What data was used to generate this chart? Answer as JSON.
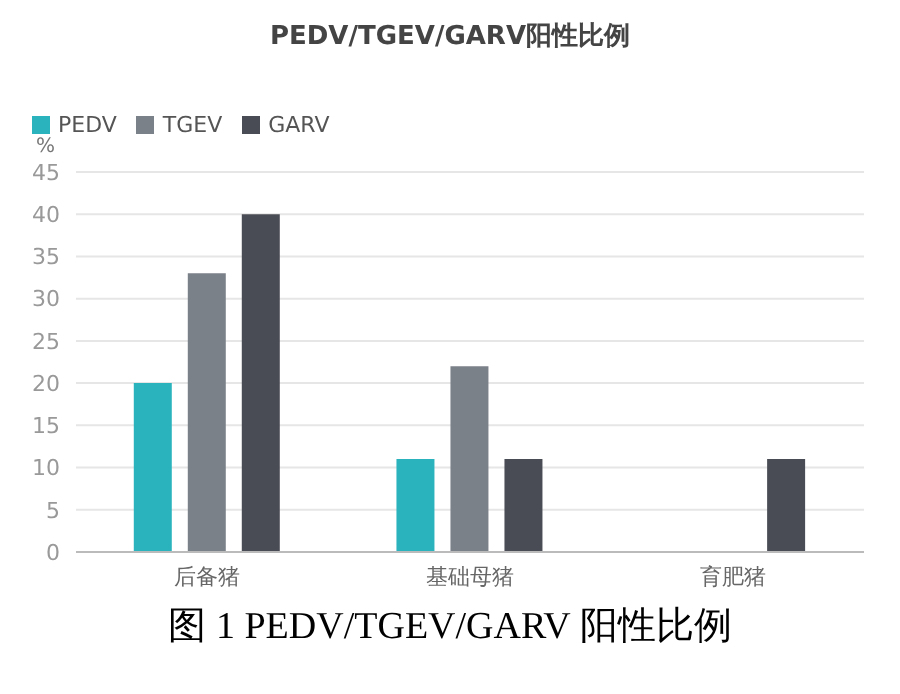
{
  "chart_data": {
    "type": "bar",
    "title": "PEDV/TGEV/GARV阳性比例",
    "ylabel": "%",
    "categories": [
      "后备猪",
      "基础母猪",
      "育肥猪"
    ],
    "series": [
      {
        "name": "PEDV",
        "color": "#2ab3bd",
        "values": [
          20,
          11,
          0
        ]
      },
      {
        "name": "TGEV",
        "color": "#7b8189",
        "values": [
          33,
          22,
          0
        ]
      },
      {
        "name": "GARV",
        "color": "#4a4c55",
        "values": [
          40,
          11,
          11
        ]
      }
    ],
    "ylim": [
      0,
      45
    ],
    "yticks": [
      0,
      5,
      10,
      15,
      20,
      25,
      30,
      35,
      40,
      45
    ],
    "grid": "y",
    "legend": "top left",
    "annotations": [
      "图 1 PEDV/TGEV/GARV 阳性比例"
    ]
  }
}
